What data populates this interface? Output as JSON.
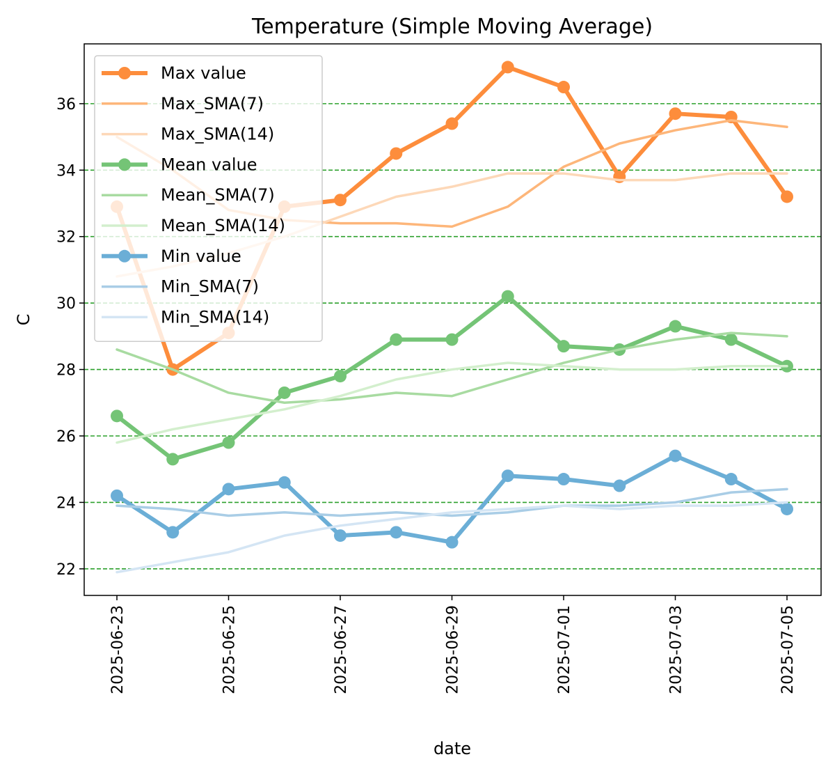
{
  "chart_data": {
    "type": "line",
    "title": "Temperature (Simple Moving Average)",
    "xlabel": "date",
    "ylabel": "C",
    "x": [
      "2025-06-23",
      "2025-06-24",
      "2025-06-25",
      "2025-06-26",
      "2025-06-27",
      "2025-06-28",
      "2025-06-29",
      "2025-06-30",
      "2025-07-01",
      "2025-07-02",
      "2025-07-03",
      "2025-07-04",
      "2025-07-05"
    ],
    "x_ticks": [
      "2025-06-23",
      "2025-06-25",
      "2025-06-27",
      "2025-06-29",
      "2025-07-01",
      "2025-07-03",
      "2025-07-05"
    ],
    "ylim": [
      21.2,
      37.8
    ],
    "y_ticks": [
      22,
      24,
      26,
      28,
      30,
      32,
      34,
      36
    ],
    "grid": "horizontal dashed",
    "grid_color": "#2ca02c",
    "legend_position": "upper-left",
    "series": [
      {
        "name": "Max value",
        "color": "#fd8d3c",
        "style": "line-markers",
        "values": [
          32.9,
          28.0,
          29.1,
          32.9,
          33.1,
          34.5,
          35.4,
          37.1,
          36.5,
          33.8,
          35.7,
          35.6,
          33.2
        ]
      },
      {
        "name": "Max_SMA(7)",
        "color": "#fdb67a",
        "style": "line",
        "values": [
          35.0,
          34.0,
          32.8,
          32.5,
          32.4,
          32.4,
          32.3,
          32.9,
          34.1,
          34.8,
          35.2,
          35.5,
          35.3
        ]
      },
      {
        "name": "Max_SMA(14)",
        "color": "#fdd8b8",
        "style": "line",
        "values": [
          30.8,
          31.1,
          31.5,
          32.0,
          32.6,
          33.2,
          33.5,
          33.9,
          33.9,
          33.7,
          33.7,
          33.9,
          33.9
        ]
      },
      {
        "name": "Mean value",
        "color": "#74c476",
        "style": "line-markers",
        "values": [
          26.6,
          25.3,
          25.8,
          27.3,
          27.8,
          28.9,
          28.9,
          30.2,
          28.7,
          28.6,
          29.3,
          28.9,
          28.1
        ]
      },
      {
        "name": "Mean_SMA(7)",
        "color": "#a8dba1",
        "style": "line",
        "values": [
          28.6,
          28.0,
          27.3,
          27.0,
          27.1,
          27.3,
          27.2,
          27.7,
          28.2,
          28.6,
          28.9,
          29.1,
          29.0
        ]
      },
      {
        "name": "Mean_SMA(14)",
        "color": "#d3efcd",
        "style": "line",
        "values": [
          25.8,
          26.2,
          26.5,
          26.8,
          27.2,
          27.7,
          28.0,
          28.2,
          28.1,
          28.0,
          28.0,
          28.1,
          28.1
        ]
      },
      {
        "name": "Min value",
        "color": "#6baed6",
        "style": "line-markers",
        "values": [
          24.2,
          23.1,
          24.4,
          24.6,
          23.0,
          23.1,
          22.8,
          24.8,
          24.7,
          24.5,
          25.4,
          24.7,
          23.8
        ]
      },
      {
        "name": "Min_SMA(7)",
        "color": "#a9cde6",
        "style": "line",
        "values": [
          23.9,
          23.8,
          23.6,
          23.7,
          23.6,
          23.7,
          23.6,
          23.7,
          23.9,
          23.9,
          24.0,
          24.3,
          24.4
        ]
      },
      {
        "name": "Min_SMA(14)",
        "color": "#d4e5f4",
        "style": "line",
        "values": [
          21.9,
          22.2,
          22.5,
          23.0,
          23.3,
          23.5,
          23.7,
          23.8,
          23.9,
          23.8,
          23.9,
          23.9,
          24.0
        ]
      }
    ]
  }
}
